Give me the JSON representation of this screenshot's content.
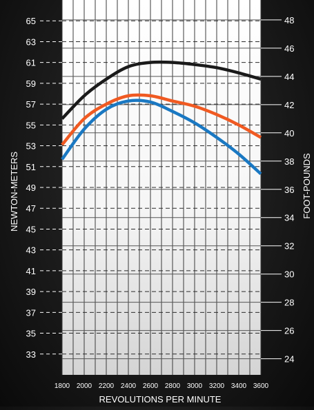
{
  "chart_data": {
    "type": "line",
    "xlabel": "REVOLUTIONS PER MINUTE",
    "ylabel_left": "NEWTON-METERS",
    "ylabel_right": "FOOT-POUNDS",
    "xlim": [
      1800,
      3600
    ],
    "ylim_left": [
      31,
      67
    ],
    "ylim_right": [
      22.86,
      49.41
    ],
    "x_ticks": [
      1800,
      2000,
      2200,
      2400,
      2600,
      2800,
      3000,
      3200,
      3400,
      3600
    ],
    "y_ticks_left": [
      33,
      35,
      37,
      39,
      41,
      43,
      45,
      47,
      49,
      51,
      53,
      55,
      57,
      59,
      61,
      63,
      65
    ],
    "y_ticks_right": [
      24,
      26,
      28,
      30,
      32,
      34,
      36,
      38,
      40,
      42,
      44,
      46,
      48
    ],
    "grid": true,
    "x": [
      1800,
      2000,
      2200,
      2400,
      2600,
      2800,
      3000,
      3200,
      3400,
      3600
    ],
    "series": [
      {
        "color": "#1a1a1a",
        "values": [
          55.6,
          57.8,
          59.4,
          60.6,
          61.0,
          61.0,
          60.8,
          60.5,
          60.0,
          59.4
        ]
      },
      {
        "color": "#f05a22",
        "values": [
          53.1,
          55.6,
          57.0,
          57.8,
          57.8,
          57.3,
          56.8,
          56.0,
          55.0,
          53.8
        ]
      },
      {
        "color": "#1a78c2",
        "values": [
          51.7,
          54.6,
          56.5,
          57.3,
          57.2,
          56.3,
          55.2,
          53.8,
          52.2,
          50.3
        ]
      }
    ]
  }
}
